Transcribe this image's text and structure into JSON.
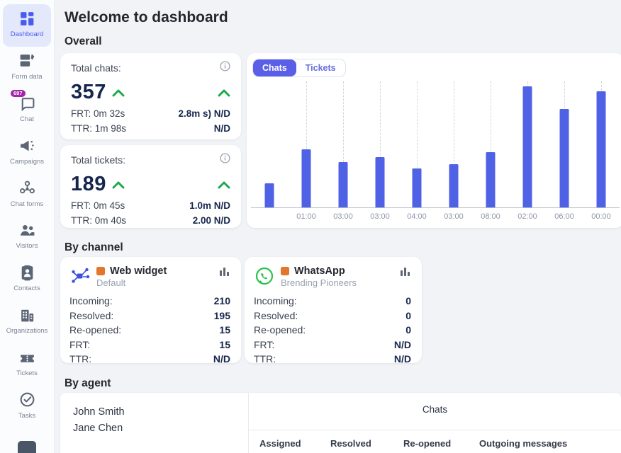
{
  "header": {
    "title": "Welcome to dashboard"
  },
  "sidebar": {
    "items": [
      {
        "label": "Dashboard",
        "icon": "dashboard",
        "active": true
      },
      {
        "label": "Form data",
        "icon": "form-data",
        "active": false
      },
      {
        "label": "Chat",
        "icon": "chat",
        "active": false,
        "badge": "697"
      },
      {
        "label": "Campaigns",
        "icon": "campaigns",
        "active": false
      },
      {
        "label": "Chat forms",
        "icon": "chat-forms",
        "active": false
      },
      {
        "label": "Visitors",
        "icon": "visitors",
        "active": false
      },
      {
        "label": "Contacts",
        "icon": "contacts",
        "active": false
      },
      {
        "label": "Organizations",
        "icon": "organizations",
        "active": false
      },
      {
        "label": "Tickets",
        "icon": "tickets",
        "active": false
      },
      {
        "label": "Tasks",
        "icon": "tasks",
        "active": false
      }
    ]
  },
  "overall": {
    "heading": "Overall",
    "cards": [
      {
        "title": "Total chats:",
        "value": "357",
        "rows": [
          {
            "label": "FRT: 0m 32s",
            "value": "2.8m s) N/D"
          },
          {
            "label": "TTR: 1m 98s",
            "value": "N/D"
          }
        ]
      },
      {
        "title": "Total tickets:",
        "value": "189",
        "rows": [
          {
            "label": "FRT: 0m 45s",
            "value": "1.0m N/D"
          },
          {
            "label": "TTR: 0m 40s",
            "value": "2.00 N/D"
          }
        ]
      }
    ]
  },
  "chart_tabs": [
    {
      "label": "Chats",
      "active": true
    },
    {
      "label": "Tickets",
      "active": false
    }
  ],
  "chart_data": {
    "type": "bar",
    "title": "",
    "x_labels": [
      "",
      "01:00",
      "03:00",
      "03:00",
      "04:00",
      "03:00",
      "08:00",
      "02:00",
      "06:00",
      "00:00"
    ],
    "values": [
      19,
      46,
      36,
      40,
      31,
      34,
      44,
      96,
      78,
      92
    ],
    "ylim": [
      0,
      100
    ],
    "xlabel": "",
    "ylabel": "",
    "grid": "vertical-dotted",
    "legend": "none",
    "bar_color": "#4f61e4"
  },
  "by_channel": {
    "heading": "By channel",
    "cards": [
      {
        "icon": "web-widget",
        "name": "Web widget",
        "subtitle": "Default",
        "rows": [
          {
            "label": "Incoming:",
            "value": "210"
          },
          {
            "label": "Resolved:",
            "value": "195"
          },
          {
            "label": "Re-opened:",
            "value": "15"
          },
          {
            "label": "FRT:",
            "value": "15"
          },
          {
            "label": "TTR:",
            "value": "N/D"
          }
        ]
      },
      {
        "icon": "whatsapp",
        "name": "WhatsApp",
        "subtitle": "Brending Pioneers",
        "rows": [
          {
            "label": "Incoming:",
            "value": "0"
          },
          {
            "label": "Resolved:",
            "value": "0"
          },
          {
            "label": "Re-opened:",
            "value": "0"
          },
          {
            "label": "FRT:",
            "value": "N/D"
          },
          {
            "label": "TTR:",
            "value": "N/D"
          }
        ]
      }
    ]
  },
  "by_agent": {
    "heading": "By agent",
    "agents": [
      "John Smith",
      "Jane Chen"
    ],
    "group_header": "Chats",
    "columns": [
      "Assigned",
      "Resolved",
      "Re-opened",
      "Outgoing messages"
    ]
  },
  "colors": {
    "accent": "#4f5be7",
    "bar": "#4f61e4",
    "trend_green": "#1fa94f",
    "orange_square": "#e2772c",
    "whatsapp_green": "#27c24f",
    "chat_badge": "#a424a8"
  }
}
